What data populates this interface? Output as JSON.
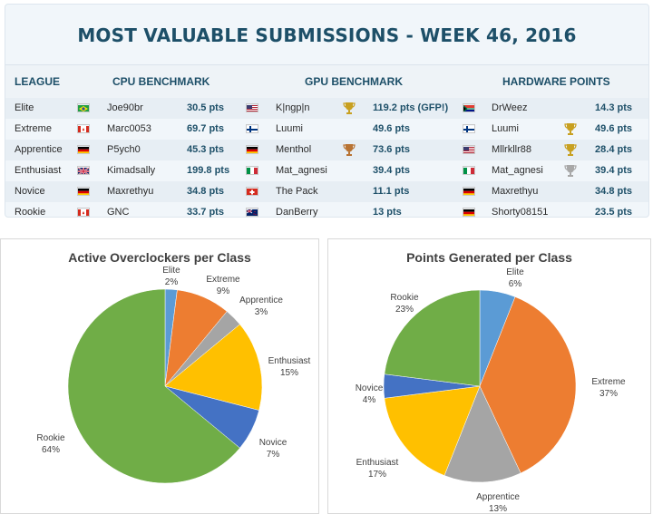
{
  "title": "MOST VALUABLE SUBMISSIONS - WEEK 46, 2016",
  "headers": {
    "league": "LEAGUE",
    "cpu": "CPU BENCHMARK",
    "gpu": "GPU BENCHMARK",
    "hw": "HARDWARE POINTS"
  },
  "rows": [
    {
      "league": "Elite",
      "cpu_flag": "br",
      "cpu_user": "Joe90br",
      "cpu_pts": "30.5 pts",
      "gpu_flag": "us",
      "gpu_user": "K|ngp|n",
      "gpu_trophy": "gold",
      "gpu_pts": "119.2 pts (GFP!)",
      "hw_flag": "za",
      "hw_user": "DrWeez",
      "hw_trophy": "",
      "hw_pts": "14.3 pts"
    },
    {
      "league": "Extreme",
      "cpu_flag": "ca",
      "cpu_user": "Marc0053",
      "cpu_pts": "69.7 pts",
      "gpu_flag": "fi",
      "gpu_user": "Luumi",
      "gpu_trophy": "",
      "gpu_pts": "49.6 pts",
      "hw_flag": "fi",
      "hw_user": "Luumi",
      "hw_trophy": "gold",
      "hw_pts": "49.6 pts"
    },
    {
      "league": "Apprentice",
      "cpu_flag": "de",
      "cpu_user": "P5ych0",
      "cpu_pts": "45.3 pts",
      "gpu_flag": "de",
      "gpu_user": "Menthol",
      "gpu_trophy": "bronze",
      "gpu_pts": "73.6 pts",
      "hw_flag": "us",
      "hw_user": "Mllrkllr88",
      "hw_trophy": "gold",
      "hw_pts": "28.4 pts"
    },
    {
      "league": "Enthusiast",
      "cpu_flag": "gb",
      "cpu_user": "Kimadsally",
      "cpu_pts": "199.8 pts",
      "gpu_flag": "it",
      "gpu_user": "Mat_agnesi",
      "gpu_trophy": "",
      "gpu_pts": "39.4 pts",
      "hw_flag": "it",
      "hw_user": "Mat_agnesi",
      "hw_trophy": "silver",
      "hw_pts": "39.4 pts"
    },
    {
      "league": "Novice",
      "cpu_flag": "de",
      "cpu_user": "Maxrethyu",
      "cpu_pts": "34.8 pts",
      "gpu_flag": "ch",
      "gpu_user": "The Pack",
      "gpu_trophy": "",
      "gpu_pts": "11.1 pts",
      "hw_flag": "de",
      "hw_user": "Maxrethyu",
      "hw_trophy": "",
      "hw_pts": "34.8 pts"
    },
    {
      "league": "Rookie",
      "cpu_flag": "ca",
      "cpu_user": "GNC",
      "cpu_pts": "33.7 pts",
      "gpu_flag": "nz",
      "gpu_user": "DanBerry",
      "gpu_trophy": "",
      "gpu_pts": "13 pts",
      "hw_flag": "de",
      "hw_user": "Shorty08151",
      "hw_trophy": "",
      "hw_pts": "23.5 pts"
    }
  ],
  "colors": {
    "elite": "#5b9bd5",
    "extreme": "#ed7d31",
    "apprentice": "#a5a5a5",
    "enthusiast": "#ffc000",
    "novice": "#4472c4",
    "rookie": "#70ad47"
  },
  "chart_data": [
    {
      "type": "pie",
      "title": "Active Overclockers per Class",
      "categories": [
        "Elite",
        "Extreme",
        "Apprentice",
        "Enthusiast",
        "Novice",
        "Rookie"
      ],
      "values": [
        2,
        9,
        3,
        15,
        7,
        64
      ],
      "value_labels": [
        "2%",
        "9%",
        "3%",
        "15%",
        "7%",
        "64%"
      ]
    },
    {
      "type": "pie",
      "title": "Points Generated per Class",
      "categories": [
        "Elite",
        "Extreme",
        "Apprentice",
        "Enthusiast",
        "Novice",
        "Rookie"
      ],
      "values": [
        6,
        37,
        13,
        17,
        4,
        23
      ],
      "value_labels": [
        "6%",
        "37%",
        "13%",
        "17%",
        "4%",
        "23%"
      ]
    }
  ]
}
